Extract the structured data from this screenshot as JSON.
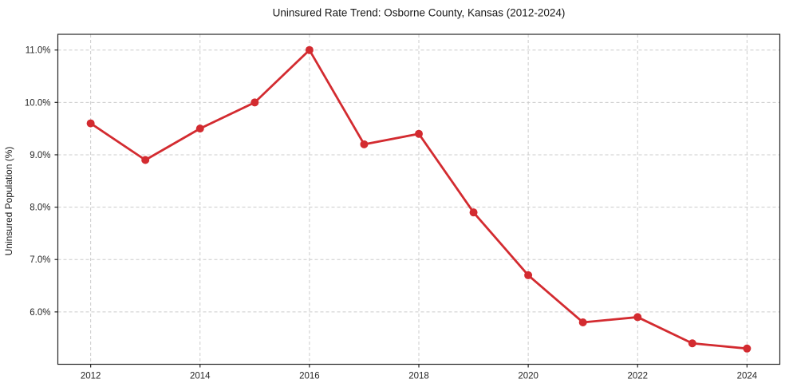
{
  "chart_data": {
    "type": "line",
    "title": "Uninsured Rate Trend: Osborne County, Kansas (2012-2024)",
    "xlabel": "",
    "ylabel": "Uninsured Population (%)",
    "x": [
      2012,
      2013,
      2014,
      2015,
      2016,
      2017,
      2018,
      2019,
      2020,
      2021,
      2022,
      2023,
      2024
    ],
    "values": [
      9.6,
      8.9,
      9.5,
      10.0,
      11.0,
      9.2,
      9.4,
      7.9,
      6.7,
      5.8,
      5.9,
      5.4,
      5.3
    ],
    "xlim": [
      2011.4,
      2024.6
    ],
    "ylim": [
      5.0,
      11.3
    ],
    "xticks": [
      2012,
      2014,
      2016,
      2018,
      2020,
      2022,
      2024
    ],
    "xtick_labels": [
      "2012",
      "2014",
      "2016",
      "2018",
      "2020",
      "2022",
      "2024"
    ],
    "yticks": [
      6,
      7,
      8,
      9,
      10,
      11
    ],
    "ytick_labels": [
      "6.0%",
      "7.0%",
      "8.0%",
      "9.0%",
      "10.0%",
      "11.0%"
    ],
    "grid": true,
    "grid_style": "dashed",
    "legend": false,
    "marker": "circle",
    "colors": {
      "line": "#d32b30",
      "marker": "#d32b30",
      "grid": "#cccccc",
      "spine": "#262626",
      "tick_text": "#262626",
      "background": "#ffffff"
    }
  }
}
